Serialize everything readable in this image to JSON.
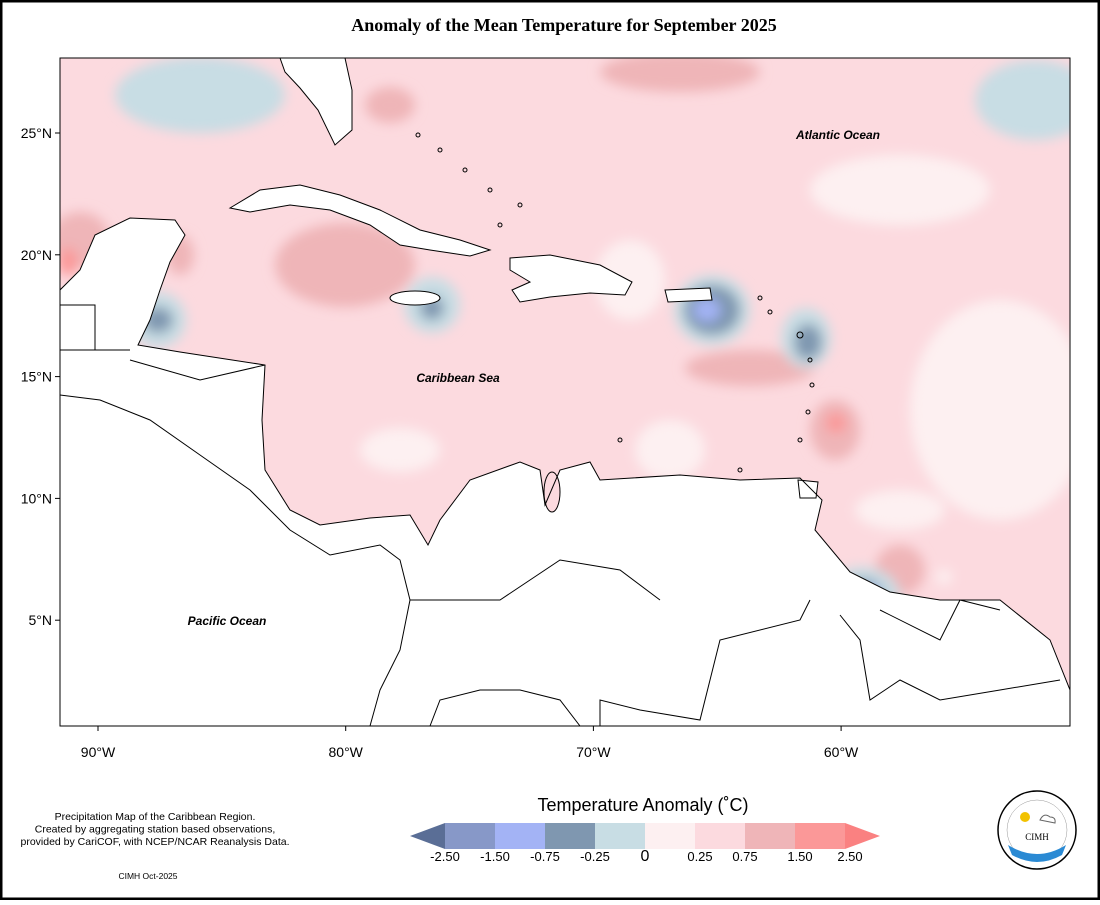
{
  "title": "Anomaly of the Mean Temperature for September 2025",
  "map": {
    "lat_labels": [
      "25°N",
      "20°N",
      "15°N",
      "10°N",
      "5°N"
    ],
    "lon_labels": [
      "90°W",
      "80°W",
      "70°W",
      "60°W"
    ],
    "regions": [
      "Atlantic Ocean",
      "Caribbean Sea",
      "Pacific Ocean"
    ]
  },
  "legend": {
    "title": "Temperature Anomaly (˚C)",
    "labels": [
      "-2.50",
      "-1.50",
      "-0.75",
      "-0.25",
      "0",
      "0.25",
      "0.75",
      "1.50",
      "2.50"
    ]
  },
  "notes": [
    "Precipitation Map of the Caribbean Region.",
    "Created by aggregating station based observations,",
    "provided by CariCOF, with NCEP/NCAR Reanalysis Data."
  ],
  "credit": "CIMH Oct-2025",
  "logo": "CIMH"
}
